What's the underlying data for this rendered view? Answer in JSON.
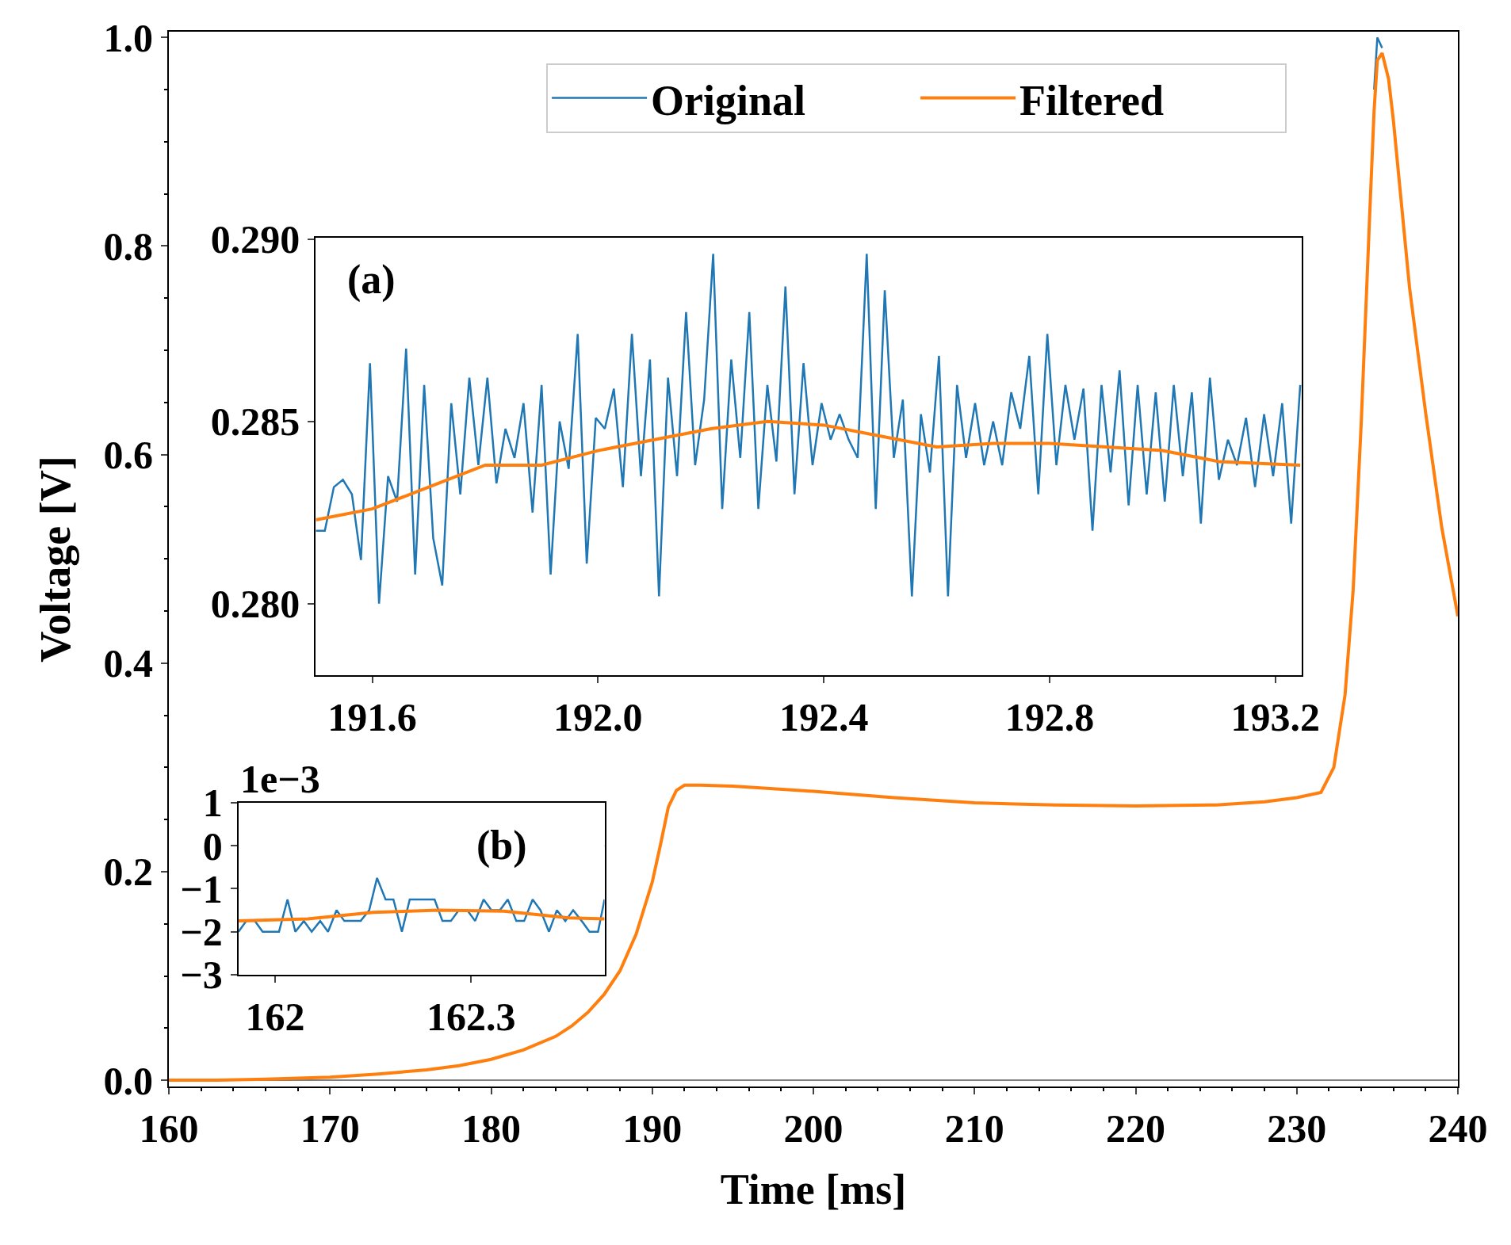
{
  "chart_data": [
    {
      "type": "line",
      "xlabel": "Time [ms]",
      "ylabel": "Voltage [V]",
      "legend": "top",
      "x": [
        160,
        163,
        166,
        170,
        173,
        176,
        178,
        180,
        182,
        184,
        185,
        186,
        187,
        188,
        189,
        190,
        190.5,
        191,
        191.5,
        192,
        193,
        195,
        200,
        205,
        210,
        215,
        220,
        225,
        228,
        230,
        231.5,
        232.3,
        233,
        233.5,
        234,
        234.5,
        234.8,
        235,
        235.3,
        235.7,
        236,
        236.5,
        237,
        238,
        239,
        240
      ],
      "series": [
        {
          "name": "Original",
          "color": "#1f77b4",
          "values": [
            null,
            null,
            null,
            null,
            null,
            null,
            null,
            null,
            null,
            null,
            null,
            null,
            null,
            null,
            null,
            null,
            null,
            null,
            null,
            null,
            null,
            null,
            null,
            null,
            null,
            null,
            null,
            null,
            null,
            null,
            null,
            null,
            null,
            null,
            null,
            null,
            0.95,
            1.0,
            0.99,
            null,
            null,
            null,
            null,
            null,
            null,
            null
          ]
        },
        {
          "name": "Filtered",
          "color": "#ff7f0e",
          "values": [
            0,
            0,
            0.001,
            0.003,
            0.006,
            0.01,
            0.014,
            0.02,
            0.029,
            0.042,
            0.052,
            0.065,
            0.082,
            0.105,
            0.14,
            0.19,
            0.225,
            0.262,
            0.278,
            0.283,
            0.283,
            0.282,
            0.277,
            0.271,
            0.266,
            0.264,
            0.263,
            0.264,
            0.267,
            0.271,
            0.276,
            0.3,
            0.37,
            0.47,
            0.63,
            0.82,
            0.93,
            0.978,
            0.985,
            0.96,
            0.92,
            0.84,
            0.76,
            0.64,
            0.53,
            0.445
          ]
        }
      ],
      "xlim": [
        160,
        240
      ],
      "ylim": [
        -0.006,
        1.0055
      ],
      "xticks": [
        160,
        170,
        180,
        190,
        200,
        210,
        220,
        230,
        240
      ],
      "yticks": [
        {
          "value": 0,
          "label": "0.0"
        },
        {
          "value": 0.2,
          "label": "0.2"
        },
        {
          "value": 0.4,
          "label": "0.4"
        },
        {
          "value": 0.6,
          "label": "0.6"
        },
        {
          "value": 0.8,
          "label": "0.8"
        },
        {
          "value": 1.0,
          "label": "1.0"
        }
      ],
      "ref_lines": [
        {
          "axis": "y",
          "value": 0,
          "color": "#808080"
        }
      ]
    },
    {
      "type": "line",
      "annotations": [
        "(a)"
      ],
      "series": [
        {
          "color": "#1f77b4",
          "x": [
            191.5,
            191.516,
            191.532,
            191.548,
            191.564,
            191.58,
            191.596,
            191.612,
            191.628,
            191.644,
            191.66,
            191.676,
            191.692,
            191.708,
            191.724,
            191.74,
            191.756,
            191.772,
            191.788,
            191.804,
            191.82,
            191.836,
            191.852,
            191.868,
            191.884,
            191.9,
            191.916,
            191.932,
            191.948,
            191.964,
            191.98,
            191.996,
            192.012,
            192.028,
            192.044,
            192.06,
            192.076,
            192.092,
            192.108,
            192.124,
            192.14,
            192.156,
            192.172,
            192.188,
            192.204,
            192.22,
            192.236,
            192.252,
            192.268,
            192.284,
            192.3,
            192.316,
            192.332,
            192.348,
            192.364,
            192.38,
            192.396,
            192.412,
            192.428,
            192.444,
            192.46,
            192.476,
            192.492,
            192.508,
            192.524,
            192.54,
            192.556,
            192.572,
            192.588,
            192.604,
            192.62,
            192.636,
            192.652,
            192.668,
            192.684,
            192.7,
            192.716,
            192.732,
            192.748,
            192.764,
            192.78,
            192.796,
            192.812,
            192.828,
            192.844,
            192.86,
            192.876,
            192.892,
            192.908,
            192.924,
            192.94,
            192.956,
            192.972,
            192.988,
            193.004,
            193.02,
            193.036,
            193.052,
            193.068,
            193.084,
            193.1,
            193.116,
            193.132,
            193.148,
            193.164,
            193.18,
            193.196,
            193.212,
            193.228,
            193.244
          ],
          "values": [
            0.282,
            0.282,
            0.2832,
            0.2834,
            0.283,
            0.2812,
            0.2866,
            0.28,
            0.2835,
            0.2828,
            0.287,
            0.2808,
            0.286,
            0.2818,
            0.2805,
            0.2855,
            0.283,
            0.2862,
            0.2838,
            0.2862,
            0.2833,
            0.2848,
            0.284,
            0.2855,
            0.2825,
            0.286,
            0.2808,
            0.285,
            0.2837,
            0.2874,
            0.2811,
            0.2851,
            0.2848,
            0.2859,
            0.2832,
            0.2874,
            0.2835,
            0.2867,
            0.2802,
            0.2862,
            0.2835,
            0.288,
            0.2838,
            0.2856,
            0.2896,
            0.2826,
            0.2867,
            0.284,
            0.288,
            0.2826,
            0.286,
            0.2839,
            0.2887,
            0.283,
            0.2866,
            0.2838,
            0.2855,
            0.2845,
            0.2852,
            0.2845,
            0.284,
            0.2896,
            0.2826,
            0.2886,
            0.284,
            0.2856,
            0.2802,
            0.2852,
            0.2836,
            0.2868,
            0.2802,
            0.286,
            0.284,
            0.2855,
            0.2838,
            0.285,
            0.2838,
            0.2858,
            0.2848,
            0.2868,
            0.283,
            0.2874,
            0.2838,
            0.286,
            0.2845,
            0.2859,
            0.282,
            0.286,
            0.2836,
            0.2864,
            0.2827,
            0.286,
            0.283,
            0.2858,
            0.2828,
            0.286,
            0.2835,
            0.2858,
            0.2822,
            0.2862,
            0.2834,
            0.2845,
            0.2838,
            0.2851,
            0.2832,
            0.2852,
            0.2835,
            0.2855,
            0.2822,
            0.286
          ]
        },
        {
          "color": "#ff7f0e",
          "x": [
            191.5,
            191.6,
            191.7,
            191.8,
            191.9,
            192.0,
            192.1,
            192.2,
            192.3,
            192.4,
            192.5,
            192.6,
            192.7,
            192.8,
            192.9,
            193.0,
            193.1,
            193.244
          ],
          "values": [
            0.2823,
            0.2826,
            0.2832,
            0.2838,
            0.2838,
            0.2842,
            0.2845,
            0.2848,
            0.285,
            0.2849,
            0.2846,
            0.2843,
            0.2844,
            0.2844,
            0.2843,
            0.2842,
            0.2839,
            0.2838
          ]
        }
      ],
      "xlim": [
        191.5,
        193.247
      ],
      "ylim": [
        0.27804,
        0.29005
      ],
      "xticks": [
        191.6,
        {
          "value": 192.0,
          "label": "192.0"
        },
        192.4,
        192.8,
        193.2
      ],
      "yticks": [
        {
          "value": 0.28,
          "label": "0.280"
        },
        {
          "value": 0.285,
          "label": "0.285"
        },
        {
          "value": 0.29,
          "label": "0.290"
        }
      ]
    },
    {
      "type": "line",
      "annotations": [
        "(b)",
        "1e−3"
      ],
      "series": [
        {
          "color": "#1f77b4",
          "x": [
            161.944,
            161.956,
            161.969,
            161.981,
            161.994,
            162.006,
            162.019,
            162.031,
            162.044,
            162.056,
            162.069,
            162.081,
            162.094,
            162.106,
            162.119,
            162.131,
            162.144,
            162.156,
            162.169,
            162.181,
            162.194,
            162.206,
            162.219,
            162.231,
            162.244,
            162.256,
            162.269,
            162.281,
            162.294,
            162.306,
            162.319,
            162.331,
            162.344,
            162.356,
            162.369,
            162.381,
            162.394,
            162.406,
            162.419,
            162.431,
            162.444,
            162.456,
            162.469,
            162.481,
            162.494,
            162.504
          ],
          "values": [
            -2,
            -1.75,
            -1.75,
            -2,
            -2,
            -2,
            -1.25,
            -2,
            -1.75,
            -2,
            -1.75,
            -2,
            -1.5,
            -1.75,
            -1.75,
            -1.75,
            -1.5,
            -0.75,
            -1.25,
            -1.25,
            -2,
            -1.25,
            -1.25,
            -1.25,
            -1.25,
            -1.75,
            -1.75,
            -1.5,
            -1.5,
            -1.75,
            -1.25,
            -1.5,
            -1.5,
            -1.25,
            -1.75,
            -1.75,
            -1.25,
            -1.5,
            -2,
            -1.5,
            -1.75,
            -1.5,
            -1.75,
            -2,
            -2,
            -1.25
          ]
        },
        {
          "color": "#ff7f0e",
          "x": [
            161.944,
            162.05,
            162.15,
            162.25,
            162.35,
            162.45,
            162.504
          ],
          "values": [
            -1.75,
            -1.7,
            -1.55,
            -1.5,
            -1.52,
            -1.68,
            -1.7
          ]
        }
      ],
      "xlim": [
        161.944,
        162.504
      ],
      "ylim": [
        -3,
        1
      ],
      "xticks": [
        162,
        162.3
      ],
      "yticks": [
        {
          "value": -3,
          "label": "−3"
        },
        {
          "value": -2,
          "label": "−2"
        },
        {
          "value": -1,
          "label": "−1"
        },
        {
          "value": 0,
          "label": "0"
        },
        {
          "value": 1,
          "label": "1"
        }
      ],
      "ref_lines": [
        {
          "axis": "y",
          "value": 0,
          "color": "#808080"
        }
      ]
    }
  ]
}
